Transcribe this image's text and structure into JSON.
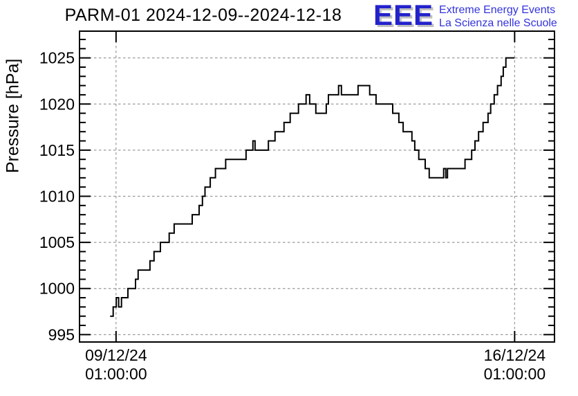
{
  "page": {
    "background": "#ffffff"
  },
  "header": {
    "title": "PARM-01 2024-12-09--2024-12-18"
  },
  "logo": {
    "acronym": "EEE",
    "line1": "Extreme Energy Events",
    "line2": "La Scienza nelle Scuole",
    "letters_color": "#2222cc",
    "text_color": "#3333dd",
    "shadow_color": "#c0c0c0"
  },
  "chart_data": {
    "type": "line",
    "subtype": "step-post",
    "title": "PARM-01 2024-12-09--2024-12-18",
    "xlabel": "",
    "ylabel": "Pressure [hPa]",
    "line_color": "#000000",
    "line_width": 2,
    "frame_color": "#000000",
    "grid": {
      "on": true,
      "color": "#999999",
      "style": "dashed"
    },
    "legend": {
      "shown": false
    },
    "x_axis": {
      "unit": "hours since 2024-12-08 00:00:00",
      "domain": [
        9.6,
        209.8
      ],
      "major_ticks": [
        {
          "t": 25,
          "label_line1": "09/12/24",
          "label_line2": "01:00:00"
        },
        {
          "t": 193,
          "label_line1": "16/12/24",
          "label_line2": "01:00:00"
        }
      ]
    },
    "y_axis": {
      "domain": [
        994.2,
        1027.9
      ],
      "major_ticks": [
        995,
        1000,
        1005,
        1010,
        1015,
        1020,
        1025
      ],
      "minor_tick_step": 1
    },
    "steps_t_pressure": [
      [
        22.5,
        997
      ],
      [
        23.8,
        998
      ],
      [
        25.1,
        999
      ],
      [
        26.1,
        998
      ],
      [
        27.3,
        999
      ],
      [
        30.0,
        1000
      ],
      [
        33.2,
        1001
      ],
      [
        34.3,
        1002
      ],
      [
        39.3,
        1003
      ],
      [
        41.0,
        1004
      ],
      [
        43.7,
        1005
      ],
      [
        47.4,
        1006
      ],
      [
        49.5,
        1007
      ],
      [
        57.1,
        1008
      ],
      [
        60.0,
        1009
      ],
      [
        61.4,
        1010
      ],
      [
        62.5,
        1011
      ],
      [
        64.7,
        1012
      ],
      [
        66.9,
        1013
      ],
      [
        71.2,
        1014
      ],
      [
        79.8,
        1015
      ],
      [
        82.7,
        1016
      ],
      [
        83.6,
        1015
      ],
      [
        89.2,
        1016
      ],
      [
        92.0,
        1017
      ],
      [
        95.8,
        1018
      ],
      [
        98.4,
        1019
      ],
      [
        101.9,
        1020
      ],
      [
        105.1,
        1021
      ],
      [
        106.6,
        1020
      ],
      [
        109.2,
        1019
      ],
      [
        113.6,
        1020
      ],
      [
        114.5,
        1021
      ],
      [
        118.8,
        1022
      ],
      [
        120.0,
        1021
      ],
      [
        127.0,
        1022
      ],
      [
        131.9,
        1021
      ],
      [
        134.6,
        1020
      ],
      [
        141.6,
        1019
      ],
      [
        144.2,
        1018
      ],
      [
        146.0,
        1017
      ],
      [
        149.7,
        1016
      ],
      [
        150.9,
        1015
      ],
      [
        152.6,
        1014
      ],
      [
        155.3,
        1013
      ],
      [
        157.0,
        1012
      ],
      [
        163.1,
        1013
      ],
      [
        164.0,
        1012
      ],
      [
        164.7,
        1013
      ],
      [
        172.1,
        1014
      ],
      [
        174.9,
        1015
      ],
      [
        176.3,
        1016
      ],
      [
        177.8,
        1017
      ],
      [
        179.7,
        1018
      ],
      [
        181.8,
        1019
      ],
      [
        182.9,
        1020
      ],
      [
        184.4,
        1021
      ],
      [
        185.8,
        1022
      ],
      [
        187.3,
        1023
      ],
      [
        188.2,
        1024
      ],
      [
        189.3,
        1025
      ],
      [
        193.0,
        1025
      ]
    ]
  }
}
